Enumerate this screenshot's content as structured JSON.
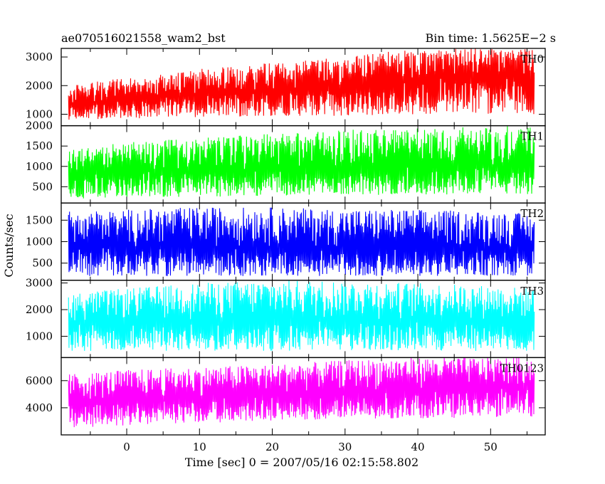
{
  "header": {
    "left": "ae070516021558_wam2_bst",
    "right": "Bin time: 1.5625E−2 s"
  },
  "chart_data": {
    "type": "line",
    "xlabel": "Time [sec] 0 = 2007/05/16 02:15:58.802",
    "ylabel": "Counts/sec",
    "xlim": [
      -9,
      57.5
    ],
    "x_ticks": [
      0,
      10,
      20,
      30,
      40,
      50
    ],
    "x_tick_labels": [
      "0",
      "10",
      "20",
      "30",
      "40",
      "50"
    ],
    "data_x_range": [
      -8,
      56
    ],
    "bin_time_s": 0.015625,
    "grid": false,
    "legend": "none",
    "panels": [
      {
        "name": "TH0",
        "color": "#ff0000",
        "ylim": [
          600,
          3300
        ],
        "y_ticks": [
          1000,
          2000,
          3000
        ],
        "y_tick_labels": [
          "1000",
          "2000",
          "3000"
        ],
        "envelope": {
          "x": [
            -8,
            0,
            10,
            20,
            30,
            40,
            50,
            56
          ],
          "mean": [
            1350,
            1500,
            1680,
            1880,
            2000,
            2200,
            2350,
            2350
          ],
          "low": [
            800,
            850,
            900,
            900,
            950,
            1000,
            1000,
            1000
          ],
          "high": [
            2000,
            2300,
            2600,
            2800,
            3000,
            3300,
            3300,
            3300
          ]
        }
      },
      {
        "name": "TH1",
        "color": "#00ff00",
        "ylim": [
          100,
          2000
        ],
        "y_ticks": [
          500,
          1000,
          1500,
          2000
        ],
        "y_tick_labels": [
          "500",
          "1000",
          "1500",
          "2000"
        ],
        "envelope": {
          "x": [
            -8,
            0,
            10,
            20,
            30,
            40,
            50,
            56
          ],
          "mean": [
            800,
            850,
            900,
            920,
            950,
            980,
            1000,
            1000
          ],
          "low": [
            200,
            250,
            250,
            280,
            300,
            300,
            320,
            320
          ],
          "high": [
            1400,
            1600,
            1700,
            1800,
            1900,
            1950,
            2000,
            2000
          ]
        }
      },
      {
        "name": "TH2",
        "color": "#0000ff",
        "ylim": [
          100,
          1900
        ],
        "y_ticks": [
          500,
          1000,
          1500
        ],
        "y_tick_labels": [
          "500",
          "1000",
          "1500"
        ],
        "envelope": {
          "x": [
            -8,
            0,
            10,
            20,
            30,
            40,
            50,
            56
          ],
          "mean": [
            900,
            850,
            850,
            860,
            850,
            840,
            830,
            820
          ],
          "low": [
            200,
            200,
            200,
            200,
            200,
            200,
            200,
            200
          ],
          "high": [
            1700,
            1750,
            1800,
            1800,
            1750,
            1750,
            1700,
            1650
          ]
        }
      },
      {
        "name": "TH3",
        "color": "#00ffff",
        "ylim": [
          200,
          3100
        ],
        "y_ticks": [
          1000,
          2000,
          3000
        ],
        "y_tick_labels": [
          "1000",
          "2000",
          "3000"
        ],
        "envelope": {
          "x": [
            -8,
            0,
            10,
            20,
            30,
            40,
            50,
            56
          ],
          "mean": [
            1500,
            1550,
            1550,
            1560,
            1550,
            1560,
            1550,
            1500
          ],
          "low": [
            400,
            450,
            450,
            450,
            450,
            450,
            450,
            450
          ],
          "high": [
            2600,
            2800,
            3000,
            3100,
            3100,
            3000,
            2900,
            2800
          ]
        }
      },
      {
        "name": "TH0123",
        "color": "#ff00ff",
        "ylim": [
          2000,
          7700
        ],
        "y_ticks": [
          4000,
          6000
        ],
        "y_tick_labels": [
          "4000",
          "6000"
        ],
        "envelope": {
          "x": [
            -8,
            0,
            10,
            20,
            30,
            40,
            50,
            56
          ],
          "mean": [
            4400,
            4500,
            4800,
            5000,
            5200,
            5400,
            5500,
            5400
          ],
          "low": [
            2500,
            2700,
            2900,
            3000,
            3200,
            3200,
            3300,
            3300
          ],
          "high": [
            6500,
            6800,
            7000,
            7200,
            7500,
            7700,
            7700,
            7700
          ]
        }
      }
    ]
  }
}
